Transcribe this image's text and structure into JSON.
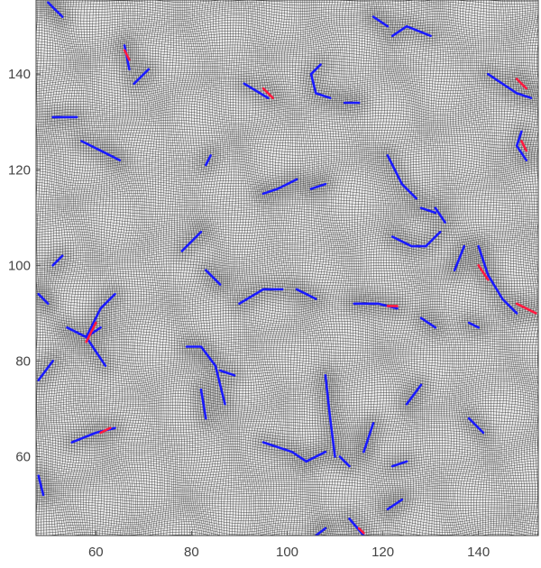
{
  "chart_data": {
    "type": "mesh-plot",
    "title": "",
    "xlabel": "",
    "ylabel": "",
    "xlim": [
      47.5,
      152.5
    ],
    "ylim": [
      43.5,
      155.5
    ],
    "x_ticks": [
      60,
      80,
      100,
      120,
      140
    ],
    "y_ticks": [
      60,
      80,
      100,
      120,
      140
    ],
    "grid_spacing": 0.5,
    "colors": {
      "background": "#ececec",
      "mesh_line": "#111111",
      "blob_shade": "#c4c4c4",
      "edge_blue": "#1a1aff",
      "edge_red": "#ff1a40",
      "axis": "#444444",
      "tick_text": "#444444"
    },
    "curves": [
      {
        "color": "blue",
        "points": [
          [
            50,
            155
          ],
          [
            53,
            152
          ]
        ]
      },
      {
        "color": "blue",
        "points": [
          [
            66,
            146
          ],
          [
            67,
            141
          ]
        ]
      },
      {
        "color": "blue",
        "points": [
          [
            68,
            138
          ],
          [
            71,
            141
          ]
        ]
      },
      {
        "color": "blue",
        "points": [
          [
            51,
            131
          ],
          [
            56,
            131
          ]
        ]
      },
      {
        "color": "blue",
        "points": [
          [
            57,
            126
          ],
          [
            61,
            124
          ],
          [
            65,
            122
          ]
        ]
      },
      {
        "color": "blue",
        "points": [
          [
            84,
            123
          ],
          [
            83,
            121
          ]
        ]
      },
      {
        "color": "blue",
        "points": [
          [
            91,
            138
          ],
          [
            96,
            135
          ]
        ]
      },
      {
        "color": "blue",
        "points": [
          [
            107,
            142
          ],
          [
            105,
            140
          ],
          [
            106,
            136
          ],
          [
            109,
            135
          ]
        ]
      },
      {
        "color": "blue",
        "points": [
          [
            112,
            134
          ],
          [
            115,
            134
          ]
        ]
      },
      {
        "color": "blue",
        "points": [
          [
            122,
            148
          ],
          [
            125,
            150
          ],
          [
            130,
            148
          ]
        ]
      },
      {
        "color": "blue",
        "points": [
          [
            118,
            152
          ],
          [
            121,
            150
          ]
        ]
      },
      {
        "color": "blue",
        "points": [
          [
            142,
            140
          ],
          [
            148,
            136
          ],
          [
            151,
            135
          ]
        ]
      },
      {
        "color": "blue",
        "points": [
          [
            149,
            128
          ],
          [
            148,
            125
          ],
          [
            150,
            122
          ]
        ]
      },
      {
        "color": "blue",
        "points": [
          [
            121,
            123
          ],
          [
            124,
            117
          ],
          [
            127,
            114
          ]
        ]
      },
      {
        "color": "blue",
        "points": [
          [
            128,
            112
          ],
          [
            131,
            111
          ]
        ]
      },
      {
        "color": "blue",
        "points": [
          [
            122,
            106
          ],
          [
            126,
            104
          ],
          [
            129,
            104
          ]
        ]
      },
      {
        "color": "blue",
        "points": [
          [
            129,
            104
          ],
          [
            132,
            107
          ]
        ]
      },
      {
        "color": "blue",
        "points": [
          [
            131,
            112
          ],
          [
            133,
            109
          ]
        ]
      },
      {
        "color": "blue",
        "points": [
          [
            135,
            99
          ],
          [
            137,
            104
          ]
        ]
      },
      {
        "color": "blue",
        "points": [
          [
            140,
            104
          ],
          [
            142,
            98
          ],
          [
            145,
            93
          ],
          [
            148,
            90
          ]
        ]
      },
      {
        "color": "blue",
        "points": [
          [
            95,
            115
          ],
          [
            98,
            116
          ],
          [
            102,
            118
          ]
        ]
      },
      {
        "color": "blue",
        "points": [
          [
            105,
            116
          ],
          [
            108,
            117
          ]
        ]
      },
      {
        "color": "blue",
        "points": [
          [
            83,
            99
          ],
          [
            86,
            96
          ]
        ]
      },
      {
        "color": "blue",
        "points": [
          [
            78,
            103
          ],
          [
            82,
            107
          ]
        ]
      },
      {
        "color": "blue",
        "points": [
          [
            90,
            92
          ],
          [
            95,
            95
          ],
          [
            99,
            95
          ]
        ]
      },
      {
        "color": "blue",
        "points": [
          [
            102,
            95
          ],
          [
            106,
            93
          ]
        ]
      },
      {
        "color": "blue",
        "points": [
          [
            114,
            92
          ],
          [
            119,
            92
          ]
        ]
      },
      {
        "color": "blue",
        "points": [
          [
            119,
            92
          ],
          [
            123,
            91
          ]
        ]
      },
      {
        "color": "blue",
        "points": [
          [
            128,
            89
          ],
          [
            131,
            87
          ]
        ]
      },
      {
        "color": "blue",
        "points": [
          [
            48,
            94
          ],
          [
            50,
            92
          ]
        ]
      },
      {
        "color": "blue",
        "points": [
          [
            51,
            100
          ],
          [
            53,
            102
          ]
        ]
      },
      {
        "color": "blue",
        "points": [
          [
            54,
            87
          ],
          [
            58,
            85
          ],
          [
            61,
            87
          ]
        ]
      },
      {
        "color": "blue",
        "points": [
          [
            58,
            85
          ],
          [
            62,
            79
          ]
        ]
      },
      {
        "color": "blue",
        "points": [
          [
            58,
            85
          ],
          [
            61,
            91
          ],
          [
            64,
            94
          ]
        ]
      },
      {
        "color": "blue",
        "points": [
          [
            48,
            76
          ],
          [
            51,
            80
          ]
        ]
      },
      {
        "color": "blue",
        "points": [
          [
            55,
            63
          ],
          [
            60,
            65
          ],
          [
            64,
            66
          ]
        ]
      },
      {
        "color": "blue",
        "points": [
          [
            79,
            83
          ],
          [
            82,
            83
          ],
          [
            85,
            79
          ]
        ]
      },
      {
        "color": "blue",
        "points": [
          [
            86,
            78
          ],
          [
            89,
            77
          ]
        ]
      },
      {
        "color": "blue",
        "points": [
          [
            85,
            79
          ],
          [
            87,
            71
          ]
        ]
      },
      {
        "color": "blue",
        "points": [
          [
            82,
            74
          ],
          [
            83,
            68
          ]
        ]
      },
      {
        "color": "blue",
        "points": [
          [
            108,
            77
          ],
          [
            109,
            68
          ],
          [
            110,
            60
          ]
        ]
      },
      {
        "color": "blue",
        "points": [
          [
            111,
            60
          ],
          [
            113,
            58
          ]
        ]
      },
      {
        "color": "blue",
        "points": [
          [
            95,
            63
          ],
          [
            101,
            61
          ],
          [
            104,
            59
          ]
        ]
      },
      {
        "color": "blue",
        "points": [
          [
            104,
            59
          ],
          [
            108,
            61
          ]
        ]
      },
      {
        "color": "blue",
        "points": [
          [
            116,
            61
          ],
          [
            118,
            67
          ]
        ]
      },
      {
        "color": "blue",
        "points": [
          [
            122,
            58
          ],
          [
            125,
            59
          ]
        ]
      },
      {
        "color": "blue",
        "points": [
          [
            125,
            71
          ],
          [
            128,
            75
          ]
        ]
      },
      {
        "color": "blue",
        "points": [
          [
            138,
            68
          ],
          [
            141,
            65
          ]
        ]
      },
      {
        "color": "blue",
        "points": [
          [
            138,
            88
          ],
          [
            140,
            87
          ]
        ]
      },
      {
        "color": "blue",
        "points": [
          [
            48,
            56
          ],
          [
            49,
            52
          ]
        ]
      },
      {
        "color": "blue",
        "points": [
          [
            106,
            43.5
          ],
          [
            108,
            45
          ]
        ]
      },
      {
        "color": "blue",
        "points": [
          [
            113,
            47
          ],
          [
            116,
            43.5
          ]
        ]
      },
      {
        "color": "blue",
        "points": [
          [
            121,
            49
          ],
          [
            124,
            51
          ]
        ]
      },
      {
        "color": "red",
        "points": [
          [
            148,
            139
          ],
          [
            150,
            137
          ]
        ]
      },
      {
        "color": "red",
        "points": [
          [
            148,
            92
          ],
          [
            152,
            90
          ]
        ]
      },
      {
        "color": "red",
        "points": [
          [
            140,
            100
          ],
          [
            142,
            97
          ]
        ]
      },
      {
        "color": "red",
        "points": [
          [
            58,
            84
          ],
          [
            60,
            88
          ]
        ]
      },
      {
        "color": "red",
        "points": [
          [
            61,
            65
          ],
          [
            63,
            66
          ]
        ]
      },
      {
        "color": "red",
        "points": [
          [
            115,
            45
          ],
          [
            116,
            44
          ]
        ]
      },
      {
        "color": "red",
        "points": [
          [
            121,
            91.5
          ],
          [
            123,
            91.5
          ]
        ]
      },
      {
        "color": "red",
        "points": [
          [
            95,
            137
          ],
          [
            97,
            135
          ]
        ]
      },
      {
        "color": "red",
        "points": [
          [
            149,
            126
          ],
          [
            150,
            124
          ]
        ]
      },
      {
        "color": "red",
        "points": [
          [
            66,
            145
          ],
          [
            67,
            143
          ]
        ]
      }
    ]
  }
}
